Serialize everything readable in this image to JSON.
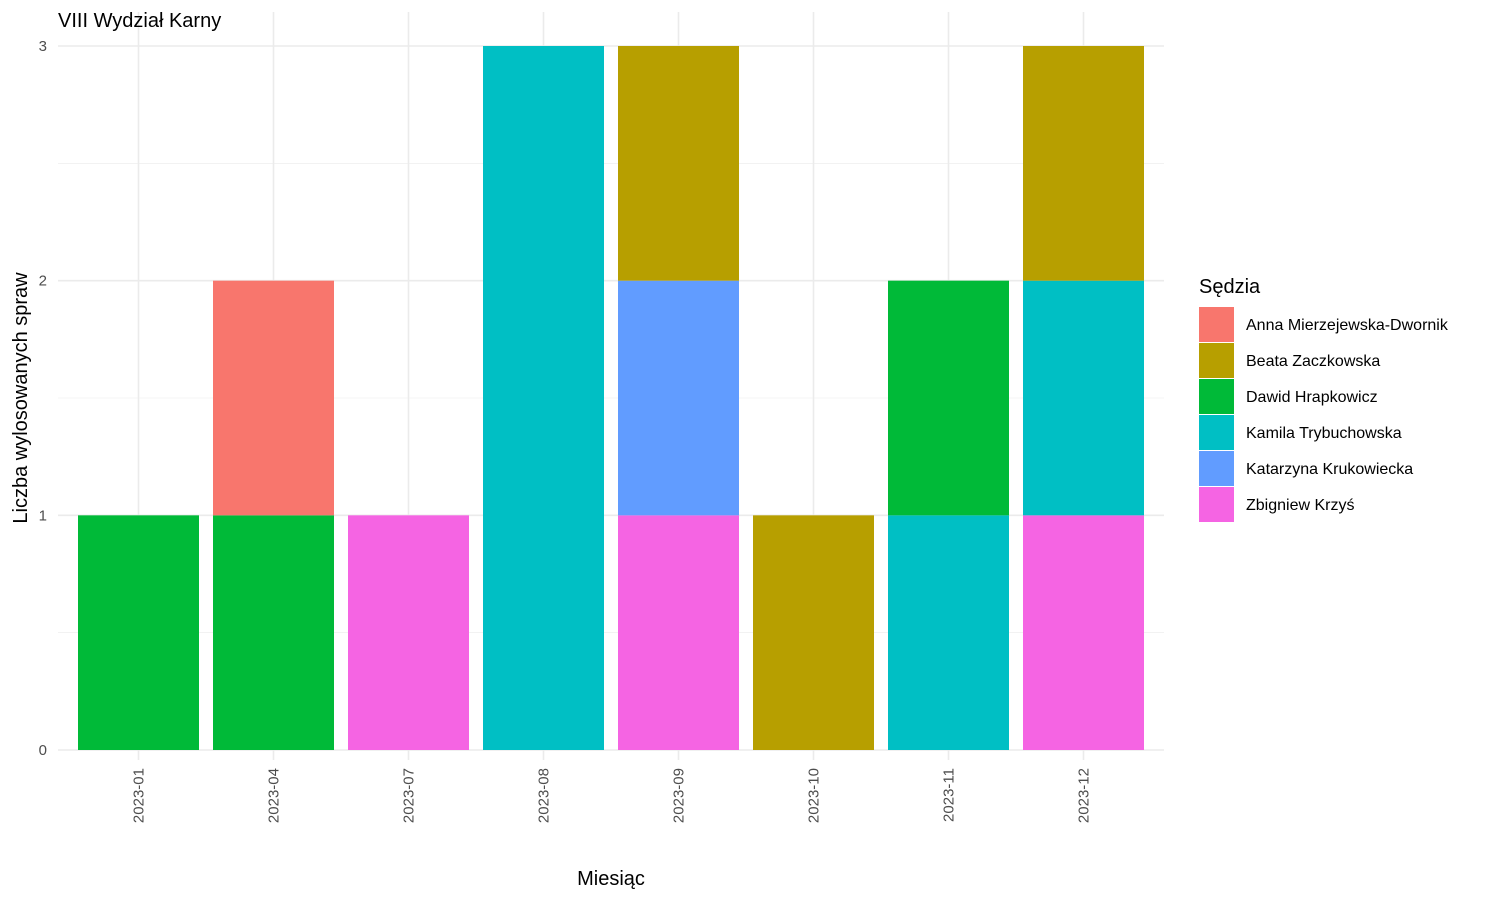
{
  "chart_data": {
    "type": "bar",
    "stacked": true,
    "title": "VIII Wydział Karny",
    "xlabel": "Miesiąc",
    "ylabel": "Liczba wylosowanych spraw",
    "ylim": [
      0,
      3
    ],
    "yticks": [
      "0",
      "1",
      "2",
      "3"
    ],
    "grid": true,
    "legend_position": "right",
    "legend_title": "Sędzia",
    "categories": [
      "2023-01",
      "2023-04",
      "2023-07",
      "2023-08",
      "2023-09",
      "2023-10",
      "2023-11",
      "2023-12"
    ],
    "series": [
      {
        "name": "Anna Mierzejewska-Dwornik",
        "color": "#F8766D",
        "values": [
          0,
          1,
          0,
          0,
          0,
          0,
          0,
          0
        ]
      },
      {
        "name": "Beata Zaczkowska",
        "color": "#B79F00",
        "values": [
          0,
          0,
          0,
          0,
          1,
          1,
          0,
          1
        ]
      },
      {
        "name": "Dawid Hrapkowicz",
        "color": "#00BA38",
        "values": [
          1,
          1,
          0,
          0,
          0,
          0,
          1,
          0
        ]
      },
      {
        "name": "Kamila Trybuchowska",
        "color": "#00BFC4",
        "values": [
          0,
          0,
          0,
          3,
          0,
          0,
          1,
          1
        ]
      },
      {
        "name": "Katarzyna Krukowiecka",
        "color": "#619CFF",
        "values": [
          0,
          0,
          0,
          0,
          1,
          0,
          0,
          0
        ]
      },
      {
        "name": "Zbigniew Krzyś",
        "color": "#F564E3",
        "values": [
          0,
          0,
          1,
          0,
          1,
          0,
          0,
          1
        ]
      }
    ]
  }
}
